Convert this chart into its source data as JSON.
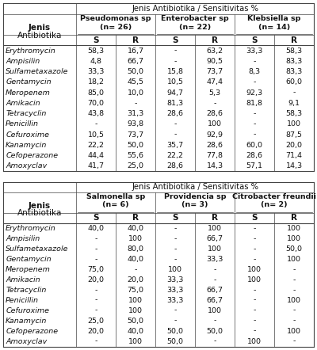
{
  "table1": {
    "title": "Jenis Antibiotika / Sensitivitas %",
    "col_groups": [
      {
        "name": "Pseudomonas sp\n(n= 26)"
      },
      {
        "name": "Enterobacter sp\n(n= 22)"
      },
      {
        "name": "Klebsiella sp\n(n= 14)"
      }
    ],
    "row_label_line1": "Jenis",
    "row_label_line2": "Antibiotika",
    "antibiotics": [
      "Erythromycin",
      "Ampisilin",
      "Sulfametaxazole",
      "Gentamycin",
      "Meropenem",
      "Amikacin",
      "Tetracyclin",
      "Penicillin",
      "Cefuroxime",
      "Kanamycin",
      "Cefoperazone",
      "Amoxyclav"
    ],
    "data": [
      [
        "58,3",
        "16,7",
        "-",
        "63,2",
        "33,3",
        "58,3"
      ],
      [
        "4,8",
        "66,7",
        "-",
        "90,5",
        "-",
        "83,3"
      ],
      [
        "33,3",
        "50,0",
        "15,8",
        "73,7",
        "8,3",
        "83,3"
      ],
      [
        "18,2",
        "45,5",
        "10,5",
        "47,4",
        "-",
        "60,0"
      ],
      [
        "85,0",
        "10,0",
        "94,7",
        "5,3",
        "92,3",
        "-"
      ],
      [
        "70,0",
        "-",
        "81,3",
        "-",
        "81,8",
        "9,1"
      ],
      [
        "43,8",
        "31,3",
        "28,6",
        "28,6",
        "-",
        "58,3"
      ],
      [
        "-",
        "93,8",
        "-",
        "100",
        "-",
        "100"
      ],
      [
        "10,5",
        "73,7",
        "-",
        "92,9",
        "-",
        "87,5"
      ],
      [
        "22,2",
        "50,0",
        "35,7",
        "28,6",
        "60,0",
        "20,0"
      ],
      [
        "44,4",
        "55,6",
        "22,2",
        "77,8",
        "28,6",
        "71,4"
      ],
      [
        "41,7",
        "25,0",
        "28,6",
        "14,3",
        "57,1",
        "14,3"
      ]
    ]
  },
  "table2": {
    "title": "Jenis Antibiotika / Sensitivitas %",
    "col_groups": [
      {
        "name": "Salmonella sp\n(n= 6)"
      },
      {
        "name": "Providencia sp\n(n= 3)"
      },
      {
        "name": "Citrobacter freundii\n(n= 2)"
      }
    ],
    "row_label_line1": "Jenis",
    "row_label_line2": "Antibiotika",
    "antibiotics": [
      "Erythromycin",
      "Ampisilin",
      "Sulfametaxazole",
      "Gentamycin",
      "Meropenem",
      "Amikacin",
      "Tetracyclin",
      "Penicillin",
      "Cefuroxime",
      "Kanamycin",
      "Cefoperazone",
      "Amoxyclav"
    ],
    "data": [
      [
        "40,0",
        "40,0",
        "-",
        "100",
        "-",
        "100"
      ],
      [
        "-",
        "100",
        "-",
        "66,7",
        "-",
        "100"
      ],
      [
        "-",
        "80,0",
        "-",
        "100",
        "-",
        "50,0"
      ],
      [
        "-",
        "40,0",
        "-",
        "33,3",
        "-",
        "100"
      ],
      [
        "75,0",
        "-",
        "100",
        "-",
        "100",
        "-"
      ],
      [
        "20,0",
        "20,0",
        "33,3",
        "-",
        "100",
        "-"
      ],
      [
        "-",
        "75,0",
        "33,3",
        "66,7",
        "-",
        "-"
      ],
      [
        "-",
        "100",
        "33,3",
        "66,7",
        "-",
        "100"
      ],
      [
        "-",
        "100",
        "-",
        "100",
        "-",
        "-"
      ],
      [
        "25,0",
        "50,0",
        "-",
        "-",
        "-",
        "-"
      ],
      [
        "20,0",
        "40,0",
        "50,0",
        "50,0",
        "-",
        "100"
      ],
      [
        "-",
        "100",
        "50,0",
        "-",
        "100",
        "-"
      ]
    ]
  },
  "line_color": "#444444",
  "text_color": "#111111",
  "fs_title": 7.2,
  "fs_group": 6.8,
  "fs_sr": 7.5,
  "fs_data": 6.8,
  "fs_antibiotic": 6.8,
  "fs_jenis": 7.5
}
